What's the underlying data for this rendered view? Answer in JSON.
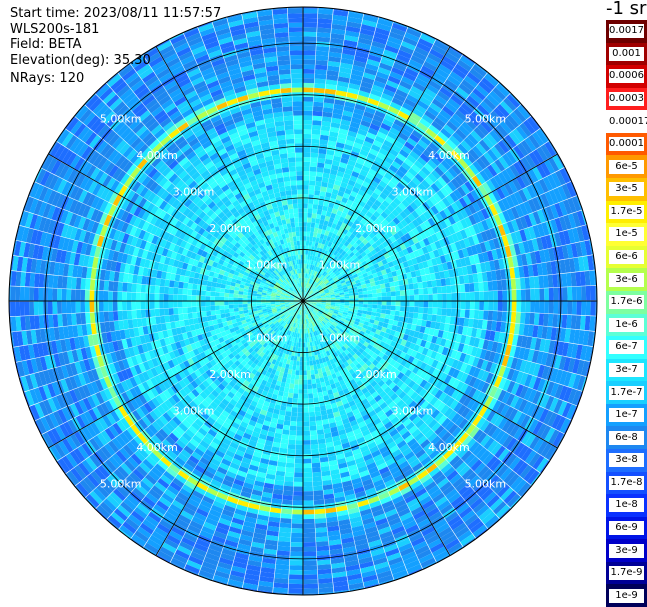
{
  "info": {
    "start_time": "Start time: 2023/08/11 11:57:57",
    "instrument": "WLS200s-181",
    "field": "Field: BETA",
    "elevation": "Elevation(deg): 35.30",
    "nrays": "NRays: 120"
  },
  "colorbar": {
    "unit": "-1 sr",
    "ticks": [
      "0.0017",
      "0.001",
      "0.0006",
      "0.0003",
      "0.00017",
      "0.0001",
      "6e-5",
      "3e-5",
      "1.7e-5",
      "1e-5",
      "6e-6",
      "3e-6",
      "1.7e-6",
      "1e-6",
      "6e-7",
      "3e-7",
      "1.7e-7",
      "1e-7",
      "6e-8",
      "3e-8",
      "1.7e-8",
      "1e-8",
      "6e-9",
      "3e-9",
      "1.7e-9",
      "1e-9"
    ],
    "colors": [
      "#6e0000",
      "#a00000",
      "#d20000",
      "#ff1e1e",
      "#ffffff",
      "#ff5a00",
      "#ff9900",
      "#ffbf00",
      "#ffee00",
      "#ffff33",
      "#e6ff33",
      "#b4ff4d",
      "#7dffa0",
      "#5cffd6",
      "#33ffff",
      "#1ee6ff",
      "#1acfff",
      "#14a0ff",
      "#1e88f0",
      "#1e6eff",
      "#1450ff",
      "#0a32ff",
      "#0014e6",
      "#0000c8",
      "#000096",
      "#00005a"
    ]
  },
  "chart_data": {
    "type": "heatmap",
    "title": "",
    "projection": "polar",
    "n_rays": 120,
    "range_rings_km": [
      1.0,
      2.0,
      3.0,
      4.0,
      5.0
    ],
    "ring_labels": [
      "1.00km",
      "2.00km",
      "3.00km",
      "4.00km",
      "5.00km"
    ],
    "max_range_km": 5.7,
    "ring_radius_km_of_enhanced_beta": 4.1,
    "background_beta_inner": "1e-7",
    "background_beta_outer": "3e-8",
    "peak_beta_ring": "3e-5",
    "spokes_every_deg": 30
  }
}
